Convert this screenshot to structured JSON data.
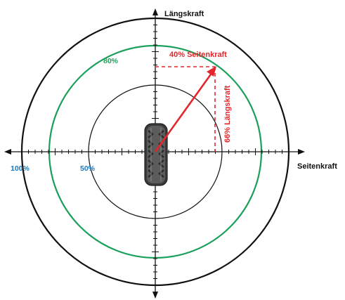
{
  "axes": {
    "y_label": "Längskraft",
    "x_label": "Seitenkraft"
  },
  "circles": {
    "outer_label": "100%",
    "inner_label": "50%",
    "green_label": "80%"
  },
  "vector": {
    "side_label": "40% Seitenkraft",
    "long_label": "66% Längskraft"
  },
  "colors": {
    "axis": "#111111",
    "green": "#1aa05a",
    "red": "#e3262c",
    "blue": "#1c78bd",
    "tire_dark": "#3a3a3a",
    "tire_mid": "#6a6a6a"
  }
}
